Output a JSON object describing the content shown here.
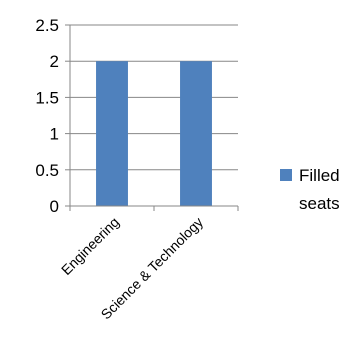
{
  "chart_data": {
    "type": "bar",
    "categories": [
      "Engineering",
      "Science & Technology"
    ],
    "series": [
      {
        "name": "Filled seats",
        "values": [
          2,
          2
        ],
        "color": "#4f81bd"
      }
    ],
    "ylim": [
      0,
      2.5
    ],
    "yticks": [
      "0",
      "0.5",
      "1",
      "1.5",
      "2",
      "2.5"
    ],
    "grid": true,
    "legend_position": "right"
  },
  "legend": {
    "line1": "Filled",
    "line2": "seats"
  }
}
